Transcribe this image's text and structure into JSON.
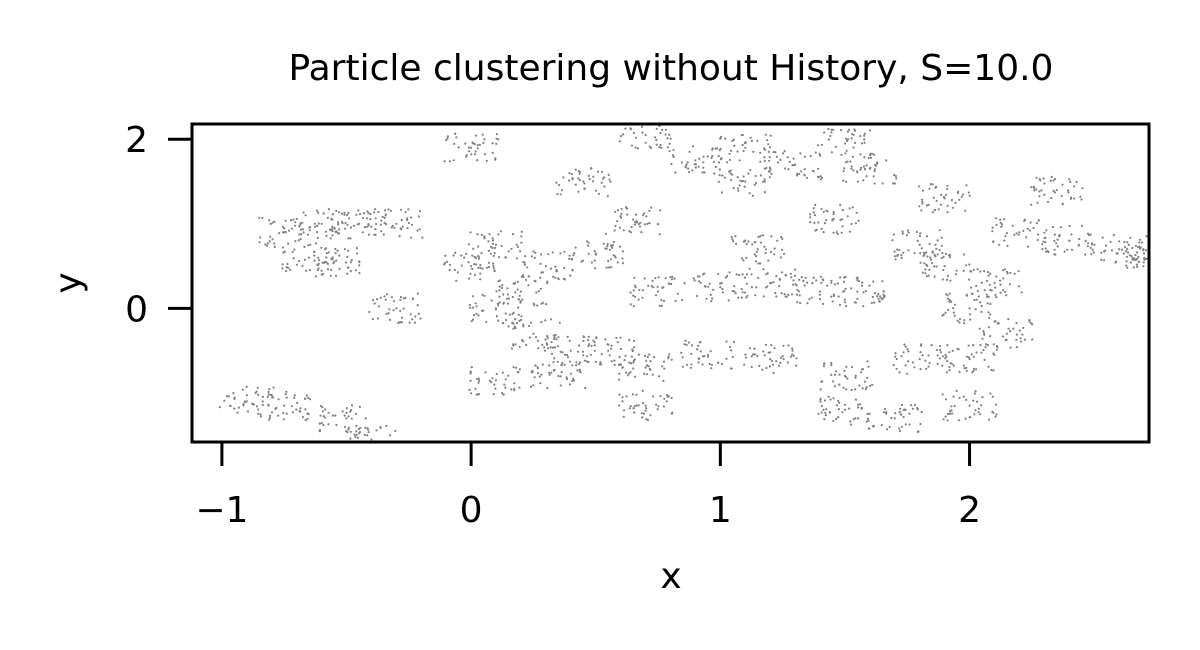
{
  "chart_data": {
    "type": "scatter",
    "title": "Particle clustering without History, S=10.0",
    "xlabel": "x",
    "ylabel": "y",
    "xlim": [
      -1.12,
      2.72
    ],
    "ylim": [
      -1.58,
      2.18
    ],
    "xticks": [
      -1,
      0,
      1,
      2
    ],
    "xtick_labels": [
      "−1",
      "0",
      "1",
      "2"
    ],
    "yticks": [
      0,
      2
    ],
    "ytick_labels": [
      "0",
      "2"
    ],
    "grid": false,
    "legend": "none",
    "marker_color": "#808080",
    "series": [
      {
        "points_sample": [
          [
            -0.6,
            1.0
          ],
          [
            -0.45,
            1.0
          ],
          [
            -0.3,
            1.0
          ],
          [
            -0.75,
            0.9
          ],
          [
            -0.65,
            0.6
          ],
          [
            -0.55,
            0.55
          ],
          [
            -0.3,
            0.0
          ],
          [
            -0.9,
            -1.1
          ],
          [
            -0.75,
            -1.15
          ],
          [
            -0.5,
            -1.3
          ],
          [
            -0.4,
            -1.55
          ],
          [
            0.0,
            1.9
          ],
          [
            0.0,
            0.5
          ],
          [
            0.1,
            0.75
          ],
          [
            0.1,
            0.0
          ],
          [
            0.1,
            -0.85
          ],
          [
            0.3,
            0.5
          ],
          [
            0.5,
            0.65
          ],
          [
            0.65,
            1.05
          ],
          [
            0.25,
            -0.3
          ],
          [
            0.4,
            -0.5
          ],
          [
            0.55,
            -0.5
          ],
          [
            0.7,
            -0.7
          ],
          [
            0.7,
            -1.15
          ],
          [
            0.35,
            -0.8
          ],
          [
            0.2,
            0.2
          ],
          [
            0.75,
            0.2
          ],
          [
            1.0,
            0.25
          ],
          [
            1.2,
            0.3
          ],
          [
            1.4,
            0.2
          ],
          [
            1.55,
            0.2
          ],
          [
            0.9,
            1.75
          ],
          [
            1.1,
            1.5
          ],
          [
            1.3,
            1.7
          ],
          [
            1.5,
            1.95
          ],
          [
            1.6,
            1.65
          ],
          [
            1.45,
            1.05
          ],
          [
            1.15,
            0.7
          ],
          [
            1.8,
            0.75
          ],
          [
            1.9,
            0.5
          ],
          [
            2.1,
            0.3
          ],
          [
            2.15,
            -0.3
          ],
          [
            2.0,
            -0.6
          ],
          [
            1.8,
            -0.6
          ],
          [
            1.5,
            -0.8
          ],
          [
            1.2,
            -0.6
          ],
          [
            0.95,
            -0.55
          ],
          [
            1.5,
            -1.2
          ],
          [
            2.0,
            -1.15
          ],
          [
            1.7,
            -1.3
          ],
          [
            2.2,
            0.9
          ],
          [
            2.4,
            0.8
          ],
          [
            2.6,
            0.7
          ],
          [
            2.7,
            0.65
          ],
          [
            2.35,
            1.4
          ],
          [
            1.9,
            1.3
          ],
          [
            0.45,
            1.5
          ],
          [
            0.7,
            2.05
          ],
          [
            1.1,
            1.9
          ],
          [
            2.0,
            0.0
          ]
        ]
      }
    ]
  }
}
